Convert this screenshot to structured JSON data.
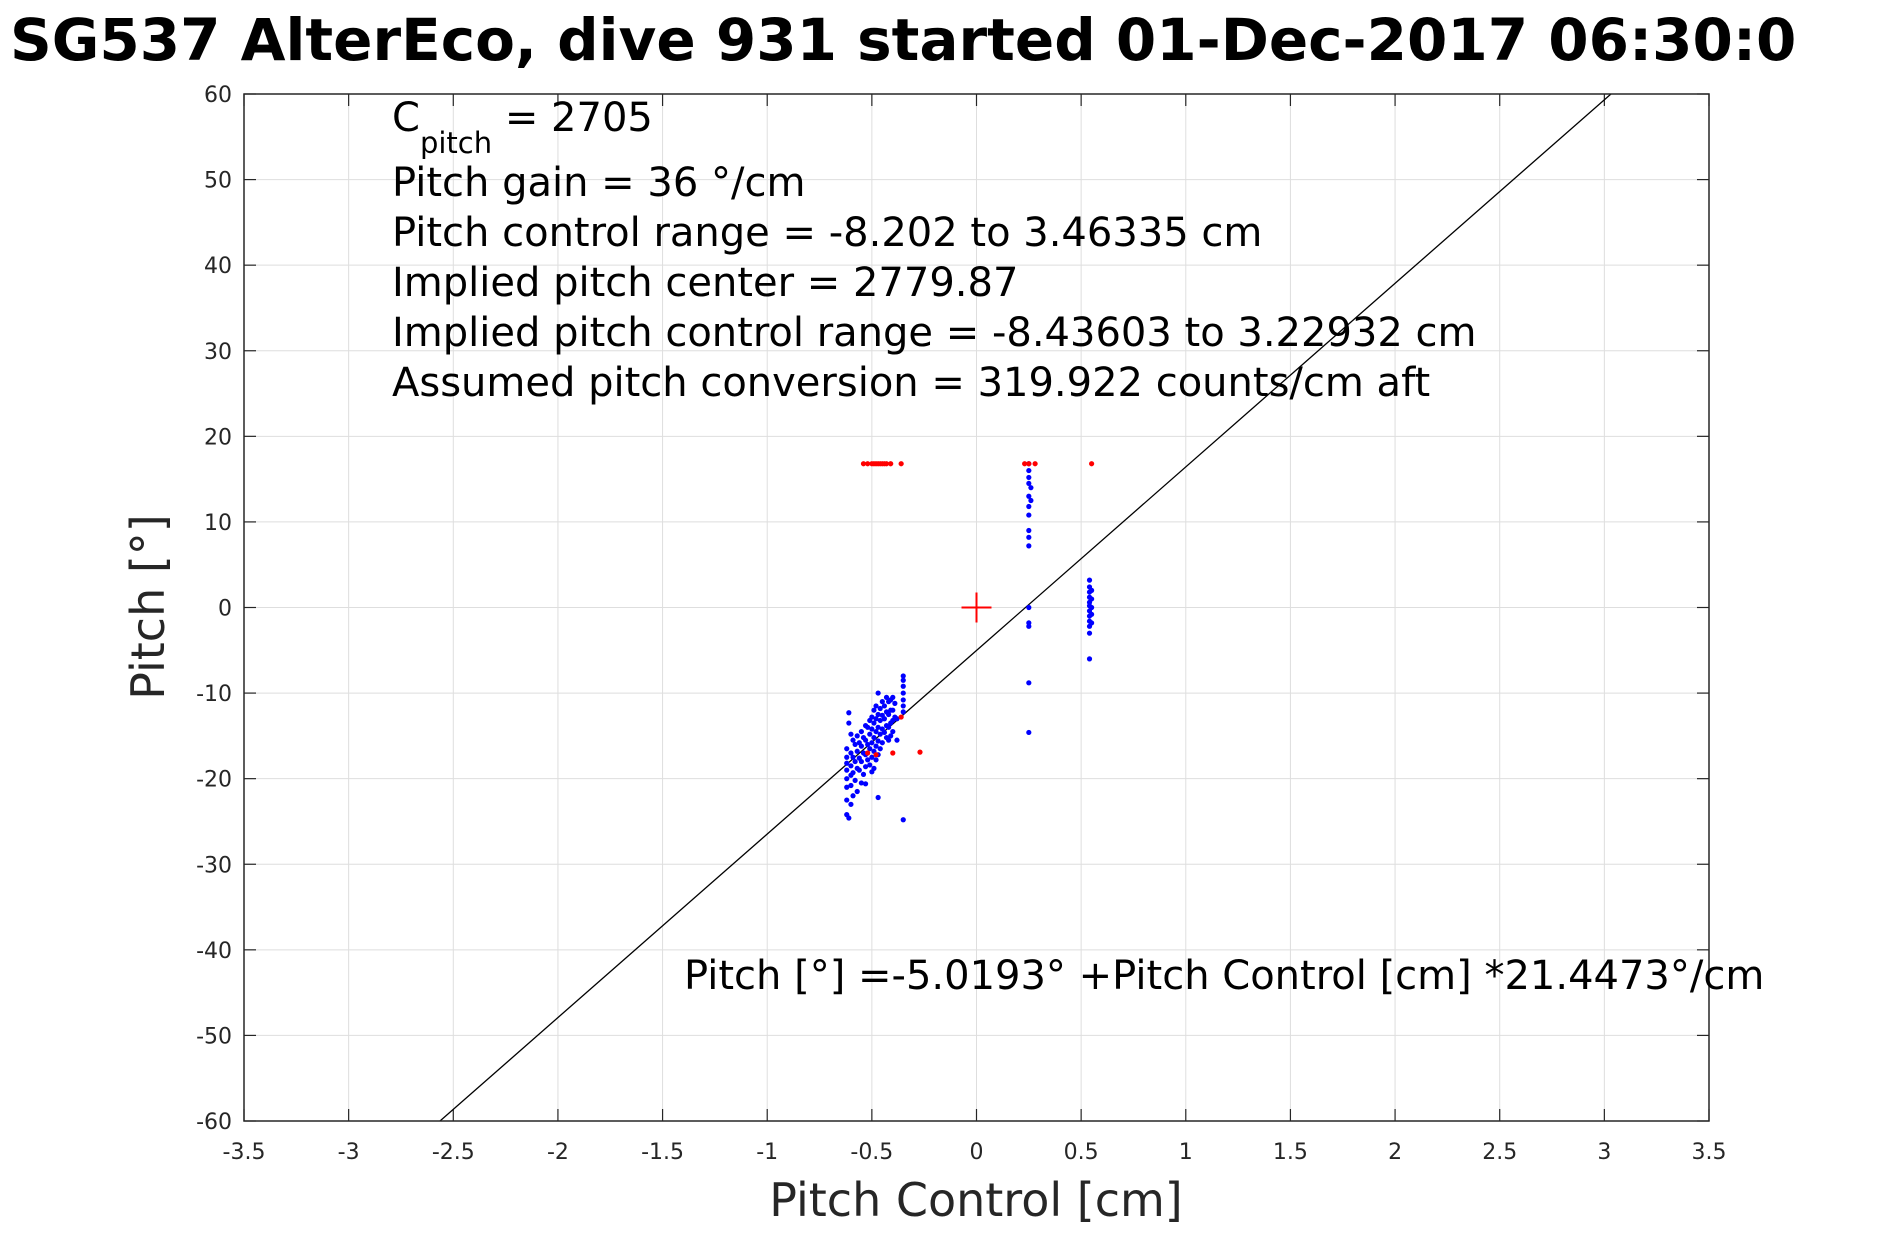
{
  "chart_data": {
    "type": "scatter",
    "title": "SG537 AlterEco, dive 931 started 01-Dec-2017 06:30:0",
    "xlabel": "Pitch Control [cm]",
    "ylabel": "Pitch [°]",
    "xlim": [
      -3.5,
      3.5
    ],
    "ylim": [
      -60,
      60
    ],
    "xticks": [
      -3.5,
      -3,
      -2.5,
      -2,
      -1.5,
      -1,
      -0.5,
      0,
      0.5,
      1,
      1.5,
      2,
      2.5,
      3,
      3.5
    ],
    "xtick_labels": [
      "-3.5",
      "-3",
      "-2.5",
      "-2",
      "-1.5",
      "-1",
      "-0.5",
      "0",
      "0.5",
      "1",
      "1.5",
      "2",
      "2.5",
      "3",
      "3.5"
    ],
    "yticks": [
      -60,
      -50,
      -40,
      -30,
      -20,
      -10,
      0,
      10,
      20,
      30,
      40,
      50,
      60
    ],
    "ytick_labels": [
      "-60",
      "-50",
      "-40",
      "-30",
      "-20",
      "-10",
      "0",
      "10",
      "20",
      "30",
      "40",
      "50",
      "60"
    ],
    "grid": true,
    "annotations": {
      "c_pitch_main": "C",
      "c_pitch_sub": "pitch",
      "c_pitch_value": " = 2705",
      "lines": [
        "Pitch gain = 36 °/cm",
        "Pitch control range = -8.202 to 3.46335 cm",
        "Implied pitch center = 2779.87",
        "Implied pitch control range = -8.43603 to 3.22932 cm",
        "Assumed pitch conversion = 319.922 counts/cm aft"
      ],
      "fit_equation": "Pitch [°] =-5.0193° +Pitch Control [cm] *21.4473°/cm"
    },
    "fit_line": {
      "intercept": -5.0193,
      "slope": 21.4473,
      "color": "#000000"
    },
    "center_marker": {
      "x": 0,
      "y": 0,
      "color": "#ff0000"
    },
    "series": [
      {
        "color": "#0000ff",
        "points": [
          [
            -0.61,
            -12.3
          ],
          [
            -0.61,
            -13.5
          ],
          [
            -0.62,
            -16.5
          ],
          [
            -0.62,
            -17.5
          ],
          [
            -0.62,
            -18.2
          ],
          [
            -0.62,
            -19.0
          ],
          [
            -0.62,
            -20.0
          ],
          [
            -0.62,
            -21.0
          ],
          [
            -0.62,
            -22.5
          ],
          [
            -0.62,
            -24.2
          ],
          [
            -0.61,
            -24.6
          ],
          [
            -0.6,
            -23.0
          ],
          [
            -0.6,
            -14.8
          ],
          [
            -0.6,
            -17.0
          ],
          [
            -0.6,
            -18.5
          ],
          [
            -0.6,
            -19.6
          ],
          [
            -0.6,
            -20.8
          ],
          [
            -0.59,
            -15.5
          ],
          [
            -0.59,
            -17.5
          ],
          [
            -0.59,
            -19.3
          ],
          [
            -0.59,
            -22.0
          ],
          [
            -0.58,
            -16.0
          ],
          [
            -0.58,
            -18.0
          ],
          [
            -0.58,
            -20.2
          ],
          [
            -0.57,
            -15.0
          ],
          [
            -0.57,
            -16.8
          ],
          [
            -0.57,
            -18.8
          ],
          [
            -0.57,
            -21.5
          ],
          [
            -0.56,
            -15.8
          ],
          [
            -0.56,
            -17.6
          ],
          [
            -0.56,
            -19.0
          ],
          [
            -0.55,
            -14.5
          ],
          [
            -0.55,
            -16.2
          ],
          [
            -0.55,
            -18.0
          ],
          [
            -0.55,
            -20.5
          ],
          [
            -0.54,
            -15.2
          ],
          [
            -0.54,
            -17.0
          ],
          [
            -0.54,
            -19.5
          ],
          [
            -0.53,
            -13.8
          ],
          [
            -0.53,
            -15.5
          ],
          [
            -0.53,
            -17.2
          ],
          [
            -0.53,
            -18.6
          ],
          [
            -0.53,
            -20.6
          ],
          [
            -0.52,
            -14.0
          ],
          [
            -0.52,
            -16.0
          ],
          [
            -0.52,
            -17.8
          ],
          [
            -0.51,
            -13.2
          ],
          [
            -0.51,
            -14.8
          ],
          [
            -0.51,
            -16.5
          ],
          [
            -0.51,
            -18.4
          ],
          [
            -0.5,
            -12.8
          ],
          [
            -0.5,
            -14.2
          ],
          [
            -0.5,
            -15.8
          ],
          [
            -0.5,
            -17.5
          ],
          [
            -0.5,
            -19.2
          ],
          [
            -0.49,
            -12.0
          ],
          [
            -0.49,
            -13.5
          ],
          [
            -0.49,
            -15.2
          ],
          [
            -0.49,
            -16.8
          ],
          [
            -0.49,
            -18.8
          ],
          [
            -0.48,
            -11.5
          ],
          [
            -0.48,
            -13.0
          ],
          [
            -0.48,
            -14.5
          ],
          [
            -0.48,
            -16.2
          ],
          [
            -0.48,
            -17.8
          ],
          [
            -0.47,
            -10.0
          ],
          [
            -0.47,
            -12.5
          ],
          [
            -0.47,
            -14.0
          ],
          [
            -0.47,
            -15.6
          ],
          [
            -0.47,
            -17.2
          ],
          [
            -0.47,
            -22.2
          ],
          [
            -0.46,
            -11.8
          ],
          [
            -0.46,
            -13.2
          ],
          [
            -0.46,
            -14.8
          ],
          [
            -0.46,
            -16.5
          ],
          [
            -0.45,
            -11.0
          ],
          [
            -0.45,
            -12.6
          ],
          [
            -0.45,
            -14.2
          ],
          [
            -0.45,
            -15.8
          ],
          [
            -0.44,
            -11.5
          ],
          [
            -0.44,
            -13.0
          ],
          [
            -0.44,
            -14.6
          ],
          [
            -0.43,
            -10.5
          ],
          [
            -0.43,
            -12.2
          ],
          [
            -0.43,
            -13.8
          ],
          [
            -0.43,
            -15.2
          ],
          [
            -0.42,
            -11.0
          ],
          [
            -0.42,
            -12.5
          ],
          [
            -0.42,
            -14.0
          ],
          [
            -0.42,
            -15.5
          ],
          [
            -0.41,
            -10.8
          ],
          [
            -0.41,
            -12.0
          ],
          [
            -0.41,
            -13.5
          ],
          [
            -0.41,
            -15.0
          ],
          [
            -0.4,
            -10.5
          ],
          [
            -0.4,
            -12.0
          ],
          [
            -0.4,
            -13.2
          ],
          [
            -0.4,
            -14.5
          ],
          [
            -0.39,
            -11.2
          ],
          [
            -0.39,
            -12.8
          ],
          [
            -0.38,
            -13.0
          ],
          [
            -0.38,
            -15.5
          ],
          [
            -0.35,
            -8.0
          ],
          [
            -0.35,
            -8.5
          ],
          [
            -0.35,
            -9.2
          ],
          [
            -0.35,
            -10.0
          ],
          [
            -0.35,
            -10.8
          ],
          [
            -0.35,
            -11.5
          ],
          [
            -0.35,
            -12.2
          ],
          [
            -0.35,
            -24.8
          ],
          [
            0.25,
            16.8
          ],
          [
            0.25,
            16.0
          ],
          [
            0.25,
            15.2
          ],
          [
            0.25,
            14.5
          ],
          [
            0.25,
            13.0
          ],
          [
            0.25,
            11.8
          ],
          [
            0.25,
            10.8
          ],
          [
            0.25,
            9.0
          ],
          [
            0.25,
            8.2
          ],
          [
            0.25,
            7.2
          ],
          [
            0.26,
            14.0
          ],
          [
            0.26,
            12.5
          ],
          [
            0.25,
            0.0
          ],
          [
            0.25,
            -1.8
          ],
          [
            0.25,
            -2.2
          ],
          [
            0.25,
            -8.8
          ],
          [
            0.25,
            -14.6
          ],
          [
            0.54,
            3.2
          ],
          [
            0.54,
            2.4
          ],
          [
            0.54,
            1.8
          ],
          [
            0.54,
            1.2
          ],
          [
            0.54,
            0.6
          ],
          [
            0.54,
            0.2
          ],
          [
            0.54,
            -0.4
          ],
          [
            0.54,
            -1.0
          ],
          [
            0.54,
            -1.6
          ],
          [
            0.54,
            -2.2
          ],
          [
            0.54,
            -3.0
          ],
          [
            0.54,
            -6.0
          ],
          [
            0.55,
            2.0
          ],
          [
            0.55,
            1.0
          ],
          [
            0.55,
            0.0
          ],
          [
            0.55,
            -0.8
          ],
          [
            0.55,
            -1.8
          ]
        ]
      },
      {
        "color": "#ff0000",
        "points": [
          [
            -0.54,
            16.8
          ],
          [
            -0.52,
            16.8
          ],
          [
            -0.5,
            16.8
          ],
          [
            -0.49,
            16.8
          ],
          [
            -0.48,
            16.8
          ],
          [
            -0.47,
            16.8
          ],
          [
            -0.46,
            16.8
          ],
          [
            -0.45,
            16.8
          ],
          [
            -0.44,
            16.8
          ],
          [
            -0.43,
            16.8
          ],
          [
            -0.41,
            16.8
          ],
          [
            -0.36,
            16.8
          ],
          [
            0.23,
            16.8
          ],
          [
            0.25,
            16.8
          ],
          [
            0.28,
            16.8
          ],
          [
            0.55,
            16.8
          ],
          [
            -0.52,
            -17.0
          ],
          [
            -0.48,
            -17.2
          ],
          [
            -0.4,
            -17.0
          ],
          [
            -0.36,
            -12.8
          ],
          [
            -0.27,
            -16.9
          ]
        ]
      }
    ]
  }
}
